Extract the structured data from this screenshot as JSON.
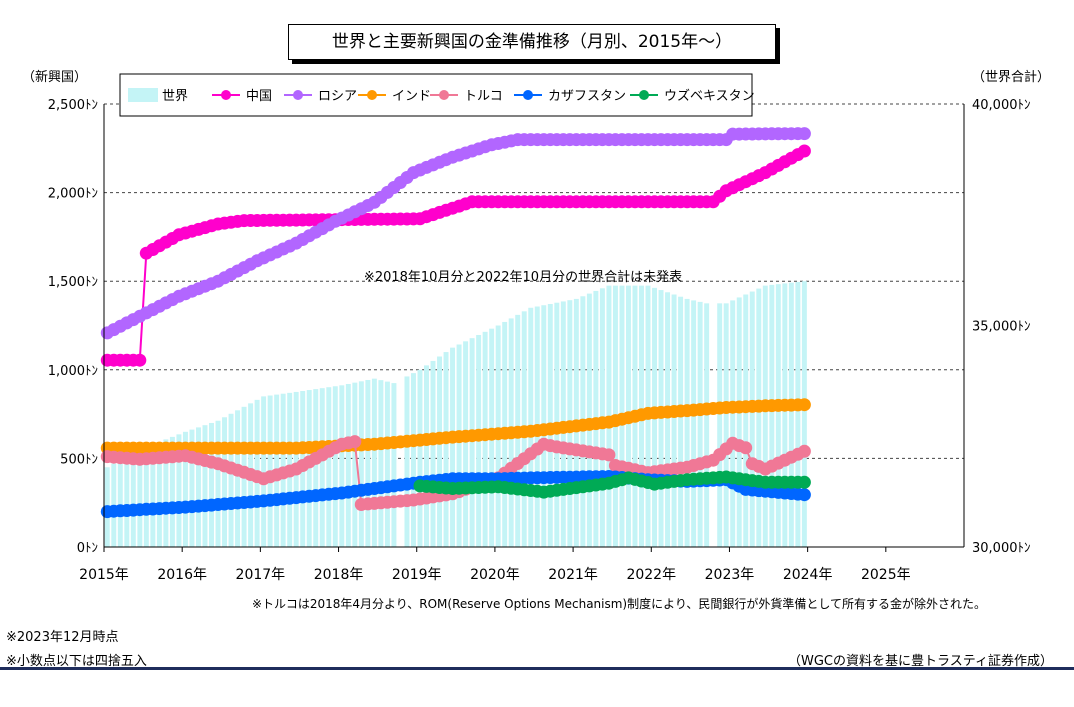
{
  "title": "世界と主要新興国の金準備推移（月別、2015年～）",
  "left_axis_title": "（新興国）",
  "right_axis_title": "（世界合計）",
  "annotation_inside": "※2018年10月分と2022年10月分の世界合計は未発表",
  "footnote_turkey": "※トルコは2018年4月分より、ROM(Reserve Options Mechanism)制度により、民間銀行が外貨準備として所有する金が除外された。",
  "note_date": "※2023年12月時点",
  "note_round": "※小数点以下は四捨五入",
  "source": "（WGCの資料を基に豊トラスティ証券作成）",
  "chart_data": {
    "type": "line",
    "x_ticks": [
      "2015年",
      "2016年",
      "2017年",
      "2018年",
      "2019年",
      "2020年",
      "2021年",
      "2022年",
      "2023年",
      "2024年",
      "2025年"
    ],
    "left_ticks": [
      "0ﾄﾝ",
      "500ﾄﾝ",
      "1,000ﾄﾝ",
      "1,500ﾄﾝ",
      "2,000ﾄﾝ",
      "2,500ﾄﾝ"
    ],
    "right_ticks": [
      "30,000ﾄﾝ",
      "35,000ﾄﾝ",
      "40,000ﾄﾝ"
    ],
    "left_range": [
      0,
      2500
    ],
    "right_range": [
      30000,
      40000
    ],
    "x_range": [
      "2015-01",
      "2025-12"
    ],
    "grid": "horizontal dashed",
    "legend": "top-left",
    "bar_series": {
      "name": "世界",
      "color": "#c4f4f6",
      "missing_months": [
        "2018-10",
        "2022-10"
      ],
      "points": [
        [
          "2015-01",
          31800
        ],
        [
          "2015-06",
          32200
        ],
        [
          "2016-01",
          32600
        ],
        [
          "2016-06",
          32850
        ],
        [
          "2017-01",
          33400
        ],
        [
          "2017-06",
          33500
        ],
        [
          "2018-01",
          33650
        ],
        [
          "2018-06",
          33800
        ],
        [
          "2018-09",
          33700
        ],
        [
          "2019-01",
          34000
        ],
        [
          "2019-06",
          34500
        ],
        [
          "2020-01",
          35000
        ],
        [
          "2020-06",
          35400
        ],
        [
          "2021-01",
          35600
        ],
        [
          "2021-06",
          35900
        ],
        [
          "2021-12",
          35900
        ],
        [
          "2022-06",
          35600
        ],
        [
          "2022-09",
          35500
        ],
        [
          "2022-12",
          35500
        ],
        [
          "2023-03",
          35700
        ],
        [
          "2023-06",
          35900
        ],
        [
          "2023-12",
          36000
        ]
      ]
    },
    "series": [
      {
        "name": "中国",
        "color": "#ff00cc",
        "points": [
          [
            "2015-01",
            1054
          ],
          [
            "2015-06",
            1054
          ],
          [
            "2015-07",
            1658
          ],
          [
            "2015-12",
            1762
          ],
          [
            "2016-06",
            1823
          ],
          [
            "2016-10",
            1842
          ],
          [
            "2019-01",
            1852
          ],
          [
            "2019-09",
            1948
          ],
          [
            "2021-12",
            1948
          ],
          [
            "2022-10",
            1948
          ],
          [
            "2022-12",
            2010
          ],
          [
            "2023-06",
            2113
          ],
          [
            "2023-12",
            2235
          ]
        ]
      },
      {
        "name": "ロシア",
        "color": "#b266ff",
        "points": [
          [
            "2015-01",
            1208
          ],
          [
            "2015-12",
            1415
          ],
          [
            "2016-06",
            1500
          ],
          [
            "2016-12",
            1615
          ],
          [
            "2017-06",
            1715
          ],
          [
            "2017-12",
            1838
          ],
          [
            "2018-06",
            1945
          ],
          [
            "2018-12",
            2113
          ],
          [
            "2019-06",
            2200
          ],
          [
            "2019-12",
            2270
          ],
          [
            "2020-04",
            2299
          ],
          [
            "2022-12",
            2299
          ],
          [
            "2023-01",
            2330
          ],
          [
            "2023-12",
            2333
          ]
        ]
      },
      {
        "name": "インド",
        "color": "#ff9900",
        "points": [
          [
            "2015-01",
            558
          ],
          [
            "2017-06",
            558
          ],
          [
            "2018-06",
            580
          ],
          [
            "2018-12",
            600
          ],
          [
            "2019-06",
            620
          ],
          [
            "2020-06",
            653
          ],
          [
            "2021-06",
            705
          ],
          [
            "2021-12",
            754
          ],
          [
            "2022-06",
            770
          ],
          [
            "2022-12",
            787
          ],
          [
            "2023-06",
            797
          ],
          [
            "2023-12",
            803
          ]
        ]
      },
      {
        "name": "トルコ",
        "color": "#f07896",
        "points": [
          [
            "2015-01",
            510
          ],
          [
            "2015-06",
            495
          ],
          [
            "2016-01",
            515
          ],
          [
            "2016-06",
            470
          ],
          [
            "2017-01",
            385
          ],
          [
            "2017-06",
            440
          ],
          [
            "2018-01",
            580
          ],
          [
            "2018-03",
            595
          ],
          [
            "2018-04",
            240
          ],
          [
            "2018-12",
            265
          ],
          [
            "2019-06",
            300
          ],
          [
            "2020-01",
            390
          ],
          [
            "2020-08",
            580
          ],
          [
            "2020-10",
            565
          ],
          [
            "2021-06",
            520
          ],
          [
            "2021-07",
            460
          ],
          [
            "2021-12",
            420
          ],
          [
            "2022-06",
            450
          ],
          [
            "2022-10",
            490
          ],
          [
            "2023-01",
            585
          ],
          [
            "2023-03",
            560
          ],
          [
            "2023-04",
            470
          ],
          [
            "2023-06",
            440
          ],
          [
            "2023-12",
            540
          ]
        ]
      },
      {
        "name": "カザフスタン",
        "color": "#0066ff",
        "points": [
          [
            "2015-01",
            200
          ],
          [
            "2016-01",
            225
          ],
          [
            "2017-01",
            260
          ],
          [
            "2018-01",
            305
          ],
          [
            "2019-01",
            365
          ],
          [
            "2019-06",
            385
          ],
          [
            "2020-01",
            385
          ],
          [
            "2020-06",
            390
          ],
          [
            "2021-06",
            398
          ],
          [
            "2021-12",
            380
          ],
          [
            "2022-06",
            370
          ],
          [
            "2022-12",
            380
          ],
          [
            "2023-03",
            325
          ],
          [
            "2023-12",
            295
          ]
        ]
      },
      {
        "name": "ウズベキスタン",
        "color": "#00aa55",
        "points": [
          [
            "2019-01",
            345
          ],
          [
            "2019-06",
            330
          ],
          [
            "2020-01",
            340
          ],
          [
            "2020-08",
            310
          ],
          [
            "2021-06",
            360
          ],
          [
            "2021-09",
            390
          ],
          [
            "2022-01",
            355
          ],
          [
            "2022-06",
            380
          ],
          [
            "2022-12",
            395
          ],
          [
            "2023-06",
            365
          ],
          [
            "2023-12",
            365
          ]
        ]
      }
    ]
  }
}
